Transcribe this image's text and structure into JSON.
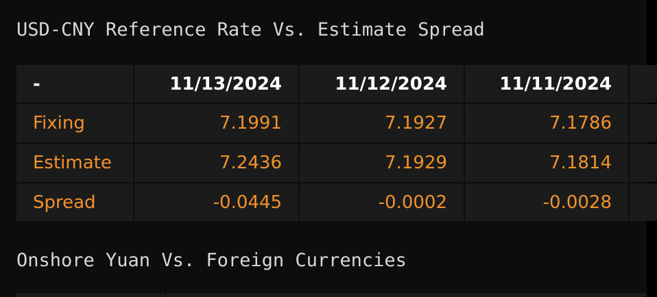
{
  "table1": {
    "title": "USD-CNY Reference Rate Vs. Estimate Spread",
    "columns": [
      "-",
      "11/13/2024",
      "11/12/2024",
      "11/11/2024"
    ],
    "rows": [
      [
        "Fixing",
        "7.1991",
        "7.1927",
        "7.1786"
      ],
      [
        "Estimate",
        "7.2436",
        "7.1929",
        "7.1814"
      ],
      [
        "Spread",
        "-0.0445",
        "-0.0002",
        "-0.0028"
      ]
    ]
  },
  "table2": {
    "title": "Onshore Yuan Vs. Foreign Currencies"
  }
}
